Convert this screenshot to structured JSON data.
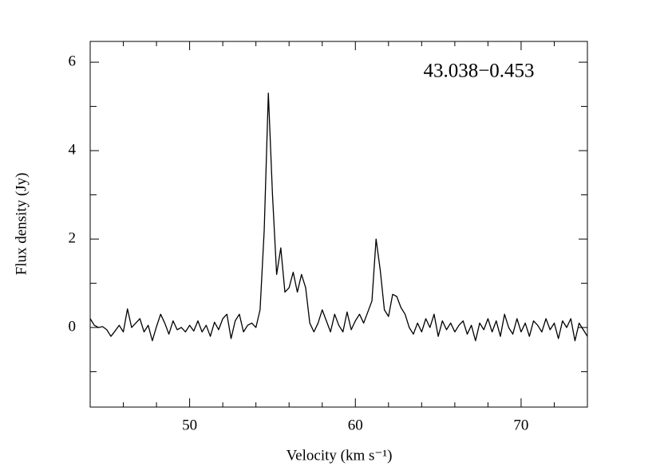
{
  "chart_data": {
    "type": "line",
    "annotation": "43.038−0.453",
    "xlabel": "Velocity (km s⁻¹)",
    "ylabel": "Flux density (Jy)",
    "x": [
      44,
      44.25,
      44.5,
      44.75,
      45,
      45.25,
      45.5,
      45.75,
      46,
      46.25,
      46.5,
      46.75,
      47,
      47.25,
      47.5,
      47.75,
      48,
      48.25,
      48.5,
      48.75,
      49,
      49.25,
      49.5,
      49.75,
      50,
      50.25,
      50.5,
      50.75,
      51,
      51.25,
      51.5,
      51.75,
      52,
      52.25,
      52.5,
      52.75,
      53,
      53.25,
      53.5,
      53.75,
      54,
      54.25,
      54.5,
      54.75,
      55,
      55.25,
      55.5,
      55.75,
      56,
      56.25,
      56.5,
      56.75,
      57,
      57.25,
      57.5,
      57.75,
      58,
      58.25,
      58.5,
      58.75,
      59,
      59.25,
      59.5,
      59.75,
      60,
      60.25,
      60.5,
      60.75,
      61,
      61.25,
      61.5,
      61.75,
      62,
      62.25,
      62.5,
      62.75,
      63,
      63.25,
      63.5,
      63.75,
      64,
      64.25,
      64.5,
      64.75,
      65,
      65.25,
      65.5,
      65.75,
      66,
      66.25,
      66.5,
      66.75,
      67,
      67.25,
      67.5,
      67.75,
      68,
      68.25,
      68.5,
      68.75,
      69,
      69.25,
      69.5,
      69.75,
      70,
      70.25,
      70.5,
      70.75,
      71,
      71.25,
      71.5,
      71.75,
      72,
      72.25,
      72.5,
      72.75,
      73,
      73.25,
      73.5,
      73.75,
      74
    ],
    "values": [
      0.2,
      0.05,
      0.0,
      0.02,
      -0.05,
      -0.2,
      -0.08,
      0.05,
      -0.1,
      0.42,
      0.0,
      0.1,
      0.2,
      -0.1,
      0.05,
      -0.3,
      0.02,
      0.3,
      0.1,
      -0.15,
      0.15,
      -0.05,
      0.0,
      -0.1,
      0.05,
      -0.08,
      0.15,
      -0.1,
      0.05,
      -0.2,
      0.12,
      -0.05,
      0.2,
      0.3,
      -0.25,
      0.15,
      0.3,
      -0.1,
      0.05,
      0.1,
      0.0,
      0.4,
      2.2,
      5.3,
      3.0,
      1.2,
      1.8,
      0.8,
      0.9,
      1.25,
      0.8,
      1.2,
      0.9,
      0.1,
      -0.1,
      0.1,
      0.4,
      0.15,
      -0.1,
      0.3,
      0.05,
      -0.1,
      0.35,
      -0.05,
      0.15,
      0.3,
      0.1,
      0.35,
      0.6,
      2.0,
      1.3,
      0.4,
      0.25,
      0.75,
      0.7,
      0.45,
      0.3,
      0.0,
      -0.15,
      0.1,
      -0.1,
      0.2,
      0.0,
      0.3,
      -0.2,
      0.15,
      -0.05,
      0.1,
      -0.1,
      0.05,
      0.15,
      -0.15,
      0.05,
      -0.3,
      0.1,
      -0.05,
      0.2,
      -0.1,
      0.15,
      -0.2,
      0.3,
      0.0,
      -0.15,
      0.2,
      -0.1,
      0.1,
      -0.2,
      0.15,
      0.05,
      -0.1,
      0.2,
      -0.05,
      0.1,
      -0.25,
      0.15,
      0.0,
      0.2,
      -0.3,
      0.1,
      -0.05,
      -0.2
    ],
    "color": "#000000",
    "xlim": [
      44,
      74
    ],
    "xticks": [
      50,
      60,
      70
    ],
    "xminor": [
      46,
      48,
      52,
      54,
      56,
      58,
      62,
      64,
      66,
      68,
      72
    ],
    "ylim": [
      -1.8,
      6.47
    ],
    "yticks": [
      0,
      2,
      4,
      6
    ],
    "yminor": [
      -1,
      1,
      3,
      5
    ]
  }
}
